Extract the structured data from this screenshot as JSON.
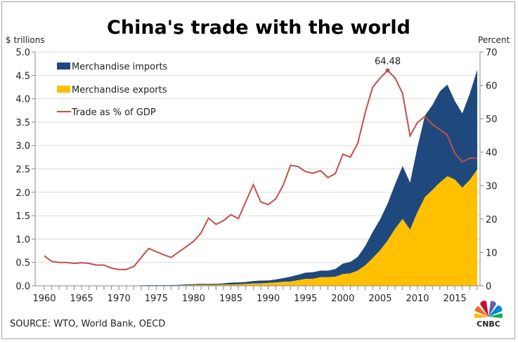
{
  "chart_data": {
    "type": "area",
    "title": "China's trade with the world",
    "ylabel": "$ trillions",
    "y2label": "Percent",
    "source": "SOURCE: WTO, World Bank, OECD",
    "logo": "CNBC",
    "ylim": [
      0,
      5
    ],
    "y2lim": [
      0,
      70
    ],
    "yticks": [
      "0.0",
      "0.5",
      "1.0",
      "1.5",
      "2.0",
      "2.5",
      "3.0",
      "3.5",
      "4.0",
      "4.5",
      "5.0"
    ],
    "y2ticks": [
      "0",
      "10",
      "20",
      "30",
      "40",
      "50",
      "60",
      "70"
    ],
    "xticks": [
      "1960",
      "1965",
      "1970",
      "1975",
      "1980",
      "1985",
      "1990",
      "1995",
      "2000",
      "2005",
      "2010",
      "2015"
    ],
    "grid": true,
    "legend_position": "top-left",
    "x": [
      1960,
      1961,
      1962,
      1963,
      1964,
      1965,
      1966,
      1967,
      1968,
      1969,
      1970,
      1971,
      1972,
      1973,
      1974,
      1975,
      1976,
      1977,
      1978,
      1979,
      1980,
      1981,
      1982,
      1983,
      1984,
      1985,
      1986,
      1987,
      1988,
      1989,
      1990,
      1991,
      1992,
      1993,
      1994,
      1995,
      1996,
      1997,
      1998,
      1999,
      2000,
      2001,
      2002,
      2003,
      2004,
      2005,
      2006,
      2007,
      2008,
      2009,
      2010,
      2011,
      2012,
      2013,
      2014,
      2015,
      2016,
      2017,
      2018
    ],
    "series": [
      {
        "name": "Merchandise imports",
        "type": "stacked-area",
        "color": "#1f497d",
        "axis": "left",
        "values": [
          0.002,
          0.001,
          0.001,
          0.001,
          0.001,
          0.002,
          0.002,
          0.002,
          0.002,
          0.002,
          0.002,
          0.002,
          0.003,
          0.005,
          0.008,
          0.007,
          0.007,
          0.007,
          0.011,
          0.016,
          0.02,
          0.022,
          0.019,
          0.021,
          0.027,
          0.042,
          0.043,
          0.043,
          0.055,
          0.059,
          0.053,
          0.064,
          0.081,
          0.104,
          0.116,
          0.132,
          0.139,
          0.142,
          0.14,
          0.166,
          0.225,
          0.244,
          0.295,
          0.413,
          0.561,
          0.66,
          0.792,
          0.956,
          1.132,
          1.006,
          1.396,
          1.743,
          1.818,
          1.95,
          1.959,
          1.68,
          1.588,
          1.843,
          2.136
        ]
      },
      {
        "name": "Merchandise exports",
        "type": "stacked-area",
        "color": "#ffc000",
        "axis": "left",
        "values": [
          0.002,
          0.001,
          0.001,
          0.001,
          0.001,
          0.002,
          0.002,
          0.002,
          0.002,
          0.002,
          0.002,
          0.003,
          0.003,
          0.006,
          0.007,
          0.007,
          0.007,
          0.008,
          0.01,
          0.014,
          0.018,
          0.022,
          0.022,
          0.022,
          0.026,
          0.027,
          0.031,
          0.039,
          0.048,
          0.053,
          0.062,
          0.072,
          0.085,
          0.092,
          0.121,
          0.149,
          0.151,
          0.183,
          0.184,
          0.195,
          0.249,
          0.266,
          0.326,
          0.438,
          0.593,
          0.762,
          0.969,
          1.218,
          1.431,
          1.202,
          1.578,
          1.898,
          2.049,
          2.209,
          2.342,
          2.273,
          2.098,
          2.263,
          2.487
        ]
      },
      {
        "name": "Trade as % of GDP",
        "type": "line",
        "color": "#c0504d",
        "axis": "right",
        "values": [
          9.0,
          7.3,
          7.0,
          7.0,
          6.7,
          6.9,
          6.7,
          6.2,
          6.2,
          5.3,
          4.9,
          4.9,
          5.8,
          8.5,
          11.2,
          10.2,
          9.3,
          8.5,
          10.1,
          11.7,
          13.3,
          15.8,
          20.3,
          18.4,
          19.5,
          21.3,
          20.1,
          25.2,
          30.3,
          25.1,
          24.3,
          26.0,
          30.1,
          36.1,
          35.7,
          34.2,
          33.7,
          34.5,
          32.4,
          33.6,
          39.4,
          38.5,
          42.7,
          51.9,
          59.5,
          62.2,
          64.48,
          62.2,
          57.6,
          44.9,
          48.9,
          50.7,
          48.3,
          46.8,
          45.1,
          39.6,
          37.1,
          38.2,
          38.2
        ]
      }
    ],
    "annotations": [
      {
        "x": 2006,
        "series": "Trade as % of GDP",
        "text": "64.48"
      }
    ]
  }
}
